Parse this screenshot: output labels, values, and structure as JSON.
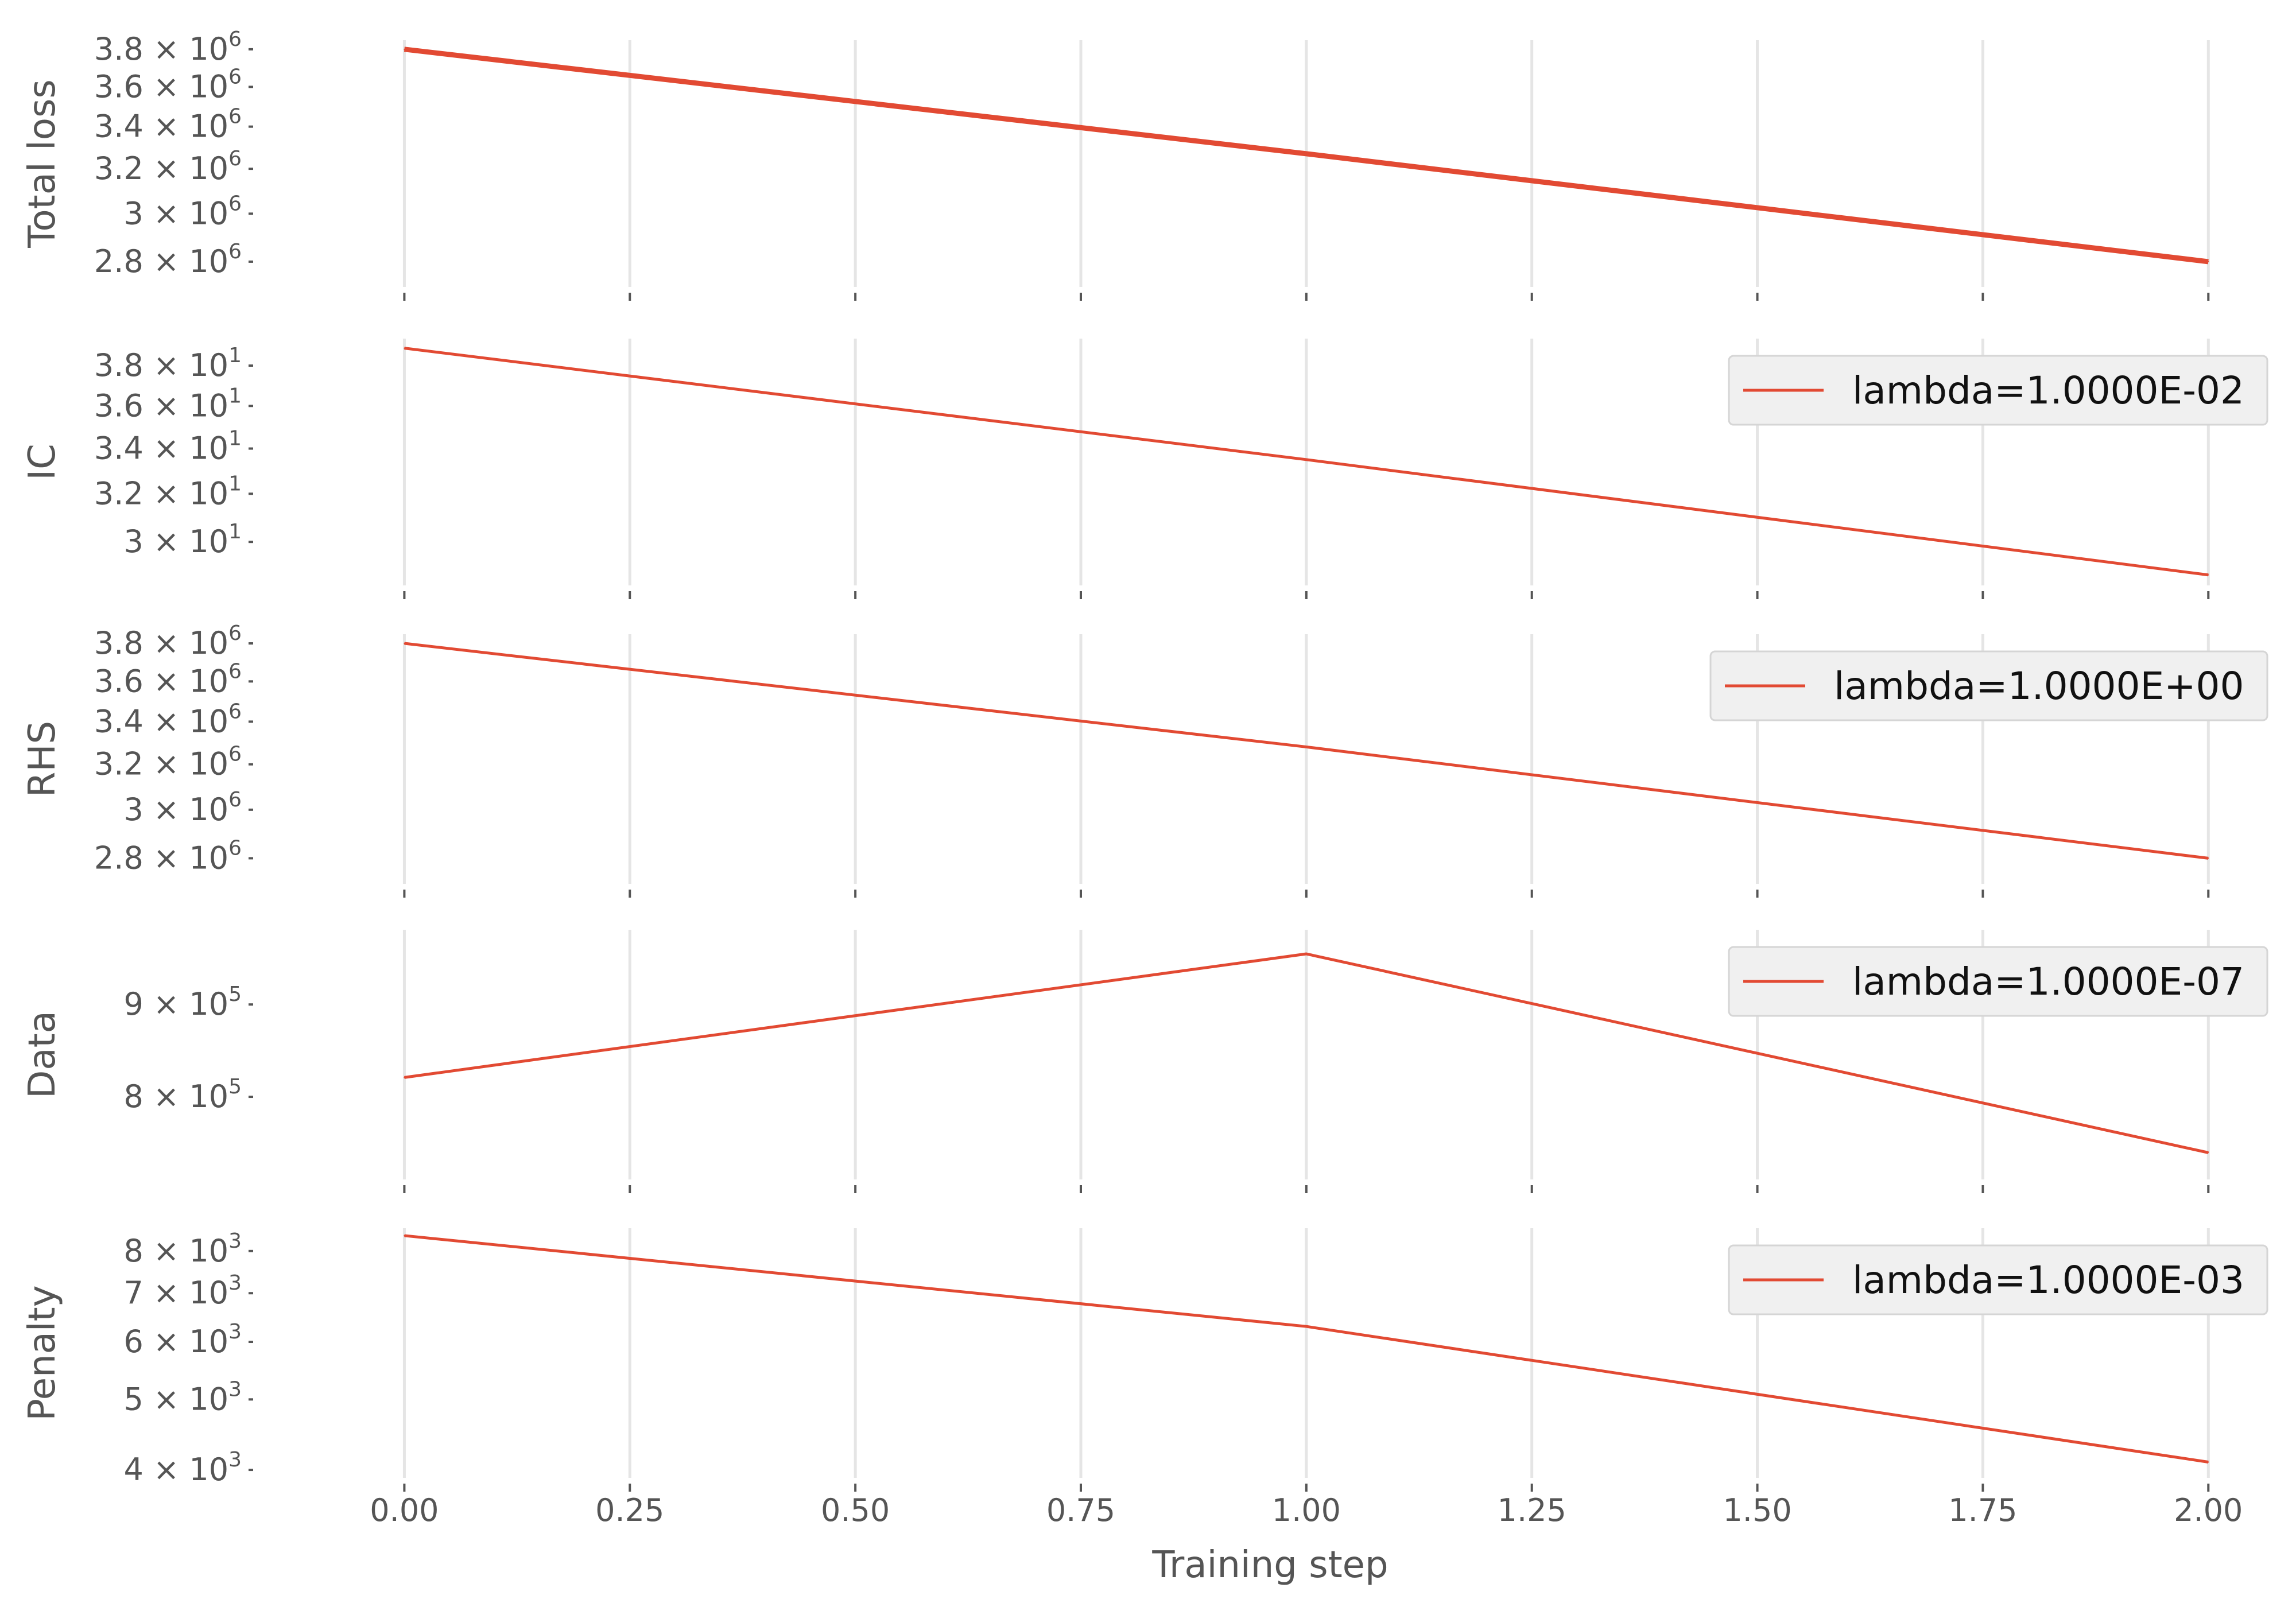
{
  "colors": {
    "series": "#E24A33",
    "grid": "#E5E5E5",
    "text": "#555555",
    "legend_bg": "#F0F0F0",
    "legend_border": "#D5D5D5"
  },
  "chart_data": [
    {
      "type": "line",
      "ylabel": "Total loss",
      "yscale": "log",
      "ylim": [
        2700000.0,
        3850000.0
      ],
      "yticks": [
        2800000.0,
        3000000.0,
        3200000.0,
        3400000.0,
        3600000.0,
        3800000.0
      ],
      "ytick_labels": [
        {
          "m": "2.8",
          "e": "6"
        },
        {
          "m": "3",
          "e": "6"
        },
        {
          "m": "3.2",
          "e": "6"
        },
        {
          "m": "3.4",
          "e": "6"
        },
        {
          "m": "3.6",
          "e": "6"
        },
        {
          "m": "3.8",
          "e": "6"
        }
      ],
      "x": [
        0,
        1,
        2
      ],
      "series": [
        {
          "values": [
            3800000.0,
            3270000.0,
            2800000.0
          ]
        }
      ],
      "legend": null
    },
    {
      "type": "line",
      "ylabel": "IC",
      "yscale": "log",
      "ylim": [
        28.3,
        39.4
      ],
      "yticks": [
        30,
        32,
        34,
        36,
        38
      ],
      "ytick_labels": [
        {
          "m": "3",
          "e": "1"
        },
        {
          "m": "3.2",
          "e": "1"
        },
        {
          "m": "3.4",
          "e": "1"
        },
        {
          "m": "3.6",
          "e": "1"
        },
        {
          "m": "3.8",
          "e": "1"
        }
      ],
      "x": [
        0,
        1,
        2
      ],
      "series": [
        {
          "name": "lambda=1.0000E-02",
          "values": [
            38.9,
            33.5,
            28.7
          ]
        }
      ],
      "legend": "top-right"
    },
    {
      "type": "line",
      "ylabel": "RHS",
      "yscale": "log",
      "ylim": [
        2700000.0,
        3850000.0
      ],
      "yticks": [
        2800000.0,
        3000000.0,
        3200000.0,
        3400000.0,
        3600000.0,
        3800000.0
      ],
      "ytick_labels": [
        {
          "m": "2.8",
          "e": "6"
        },
        {
          "m": "3",
          "e": "6"
        },
        {
          "m": "3.2",
          "e": "6"
        },
        {
          "m": "3.4",
          "e": "6"
        },
        {
          "m": "3.6",
          "e": "6"
        },
        {
          "m": "3.8",
          "e": "6"
        }
      ],
      "x": [
        0,
        1,
        2
      ],
      "series": [
        {
          "name": "lambda=1.0000E+00",
          "values": [
            3800000.0,
            3280000.0,
            2800000.0
          ]
        }
      ],
      "legend": "top-right"
    },
    {
      "type": "line",
      "ylabel": "Data",
      "yscale": "log",
      "ylim": [
        720000.0,
        990000.0
      ],
      "yticks": [
        800000.0,
        900000.0
      ],
      "ytick_labels": [
        {
          "m": "8",
          "e": "5"
        },
        {
          "m": "9",
          "e": "5"
        }
      ],
      "x": [
        0,
        1,
        2
      ],
      "series": [
        {
          "name": "lambda=1.0000E-07",
          "values": [
            820000.0,
            960000.0,
            745000.0
          ]
        }
      ],
      "legend": "top-right"
    },
    {
      "type": "line",
      "ylabel": "Penalty",
      "yscale": "log",
      "ylim": [
        3900.0,
        8600.0
      ],
      "yticks": [
        4000.0,
        5000.0,
        6000.0,
        7000.0,
        8000.0
      ],
      "ytick_labels": [
        {
          "m": "4",
          "e": "3"
        },
        {
          "m": "5",
          "e": "3"
        },
        {
          "m": "6",
          "e": "3"
        },
        {
          "m": "7",
          "e": "3"
        },
        {
          "m": "8",
          "e": "3"
        }
      ],
      "x": [
        0,
        1,
        2
      ],
      "series": [
        {
          "name": "lambda=1.0000E-03",
          "values": [
            8400.0,
            6300.0,
            4100.0
          ]
        }
      ],
      "legend": "top-right"
    }
  ],
  "x_axis": {
    "label": "Training step",
    "xlim": [
      -0.16,
      2.08
    ],
    "ticks": [
      0,
      0.25,
      0.5,
      0.75,
      1.0,
      1.25,
      1.5,
      1.75,
      2.0
    ],
    "tick_labels": [
      "0.00",
      "0.25",
      "0.50",
      "0.75",
      "1.00",
      "1.25",
      "1.50",
      "1.75",
      "2.00"
    ]
  }
}
